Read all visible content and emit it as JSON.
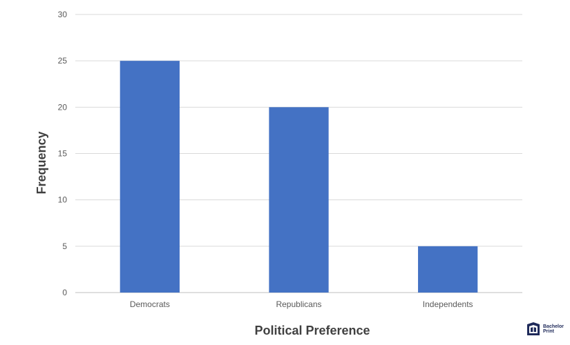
{
  "chart_data": {
    "type": "bar",
    "categories": [
      "Democrats",
      "Republicans",
      "Independents"
    ],
    "values": [
      25,
      20,
      5
    ],
    "title": "",
    "xlabel": "Political Preference",
    "ylabel": "Frequency",
    "ylim": [
      0,
      30
    ],
    "yticks": [
      0,
      5,
      10,
      15,
      20,
      25,
      30
    ],
    "grid": true,
    "legend": "none",
    "bar_color": "#4472c4"
  },
  "watermark": {
    "text": "Bachelor\nPrint",
    "icon": "bachelorprint-logo-icon",
    "color": "#1f2a5a"
  }
}
